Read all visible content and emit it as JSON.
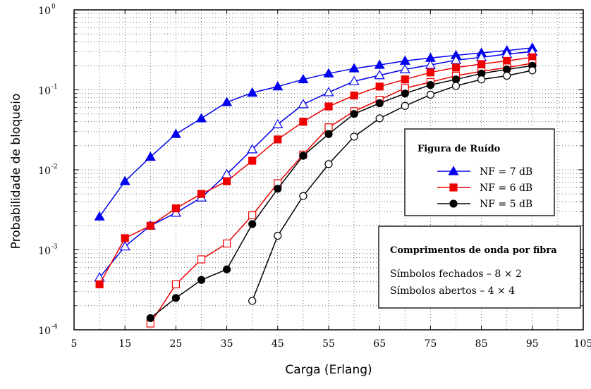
{
  "chart_data": {
    "type": "line",
    "xlabel": "Carga (Erlang)",
    "ylabel": "Probabilidade de bloqueio",
    "xlim": [
      5,
      105
    ],
    "ylim": [
      0.0001,
      1
    ],
    "yscale": "log",
    "grid": true,
    "x_ticks": [
      5,
      15,
      25,
      35,
      45,
      55,
      65,
      75,
      85,
      95,
      105
    ],
    "y_ticks": [
      {
        "value": 0.0001,
        "base": "10",
        "exp": "-4"
      },
      {
        "value": 0.001,
        "base": "10",
        "exp": "-3"
      },
      {
        "value": 0.01,
        "base": "10",
        "exp": "-2"
      },
      {
        "value": 0.1,
        "base": "10",
        "exp": "-1"
      },
      {
        "value": 1,
        "base": "10",
        "exp": "0"
      }
    ],
    "legend_noise": {
      "title": "Figura de Ruído",
      "placement": "right",
      "entries": [
        {
          "label": "NF = 7 dB",
          "color": "#0000ee",
          "marker": "triangle"
        },
        {
          "label": "NF = 6 dB",
          "color": "#ee0000",
          "marker": "square"
        },
        {
          "label": "NF = 5 dB",
          "color": "#000000",
          "marker": "circle"
        }
      ]
    },
    "legend_wavelengths": {
      "title": "Comprimentos de onda por fibra",
      "placement": "bottom-right",
      "lines": [
        "Símbolos fechados – 8 × 2",
        "Símbolos abertos – 4 × 4"
      ]
    },
    "series": [
      {
        "nf": "7",
        "wavelengths": "8x2",
        "color": "#0000ee",
        "marker": "triangle",
        "filled": true,
        "x": [
          10,
          15,
          20,
          25,
          30,
          35,
          40,
          45,
          50,
          55,
          60,
          65,
          70,
          75,
          80,
          85,
          90,
          95
        ],
        "y": [
          0.0026,
          0.0072,
          0.0145,
          0.028,
          0.044,
          0.07,
          0.092,
          0.11,
          0.135,
          0.16,
          0.185,
          0.205,
          0.23,
          0.25,
          0.27,
          0.29,
          0.31,
          0.335
        ]
      },
      {
        "nf": "7",
        "wavelengths": "4x4",
        "color": "#0000ee",
        "marker": "triangle",
        "filled": false,
        "x": [
          10,
          15,
          20,
          25,
          30,
          35,
          40,
          45,
          50,
          55,
          60,
          65,
          70,
          75,
          80,
          85,
          90,
          95
        ],
        "y": [
          0.00045,
          0.0011,
          0.002,
          0.0029,
          0.0045,
          0.0088,
          0.018,
          0.037,
          0.066,
          0.093,
          0.128,
          0.152,
          0.18,
          0.205,
          0.235,
          0.255,
          0.28,
          0.3
        ]
      },
      {
        "nf": "6",
        "wavelengths": "8x2",
        "color": "#ee0000",
        "marker": "square",
        "filled": true,
        "x": [
          10,
          15,
          20,
          25,
          30,
          35,
          40,
          45,
          50,
          55,
          60,
          65,
          70,
          75,
          80,
          85,
          90,
          95
        ],
        "y": [
          0.00037,
          0.0014,
          0.002,
          0.0033,
          0.005,
          0.0072,
          0.013,
          0.024,
          0.04,
          0.062,
          0.085,
          0.11,
          0.135,
          0.165,
          0.19,
          0.21,
          0.23,
          0.255
        ]
      },
      {
        "nf": "6",
        "wavelengths": "4x4",
        "color": "#ee0000",
        "marker": "square",
        "filled": false,
        "x": [
          20,
          25,
          30,
          35,
          40,
          45,
          50,
          55,
          60,
          65,
          70,
          75,
          80,
          85,
          90,
          95
        ],
        "y": [
          0.00012,
          0.00037,
          0.00076,
          0.0012,
          0.0027,
          0.0068,
          0.0155,
          0.034,
          0.054,
          0.075,
          0.105,
          0.125,
          0.15,
          0.17,
          0.19,
          0.215
        ]
      },
      {
        "nf": "5",
        "wavelengths": "8x2",
        "color": "#000000",
        "marker": "circle",
        "filled": true,
        "x": [
          20,
          25,
          30,
          35,
          40,
          45,
          50,
          55,
          60,
          65,
          70,
          75,
          80,
          85,
          90,
          95
        ],
        "y": [
          0.00014,
          0.00025,
          0.00042,
          0.00057,
          0.0021,
          0.0058,
          0.015,
          0.028,
          0.05,
          0.068,
          0.09,
          0.115,
          0.135,
          0.16,
          0.18,
          0.2
        ]
      },
      {
        "nf": "5",
        "wavelengths": "4x4",
        "color": "#000000",
        "marker": "circle",
        "filled": false,
        "x": [
          40,
          45,
          50,
          55,
          60,
          65,
          70,
          75,
          80,
          85,
          90,
          95
        ],
        "y": [
          0.00023,
          0.0015,
          0.0047,
          0.0118,
          0.026,
          0.044,
          0.063,
          0.087,
          0.112,
          0.135,
          0.15,
          0.175
        ]
      }
    ]
  }
}
